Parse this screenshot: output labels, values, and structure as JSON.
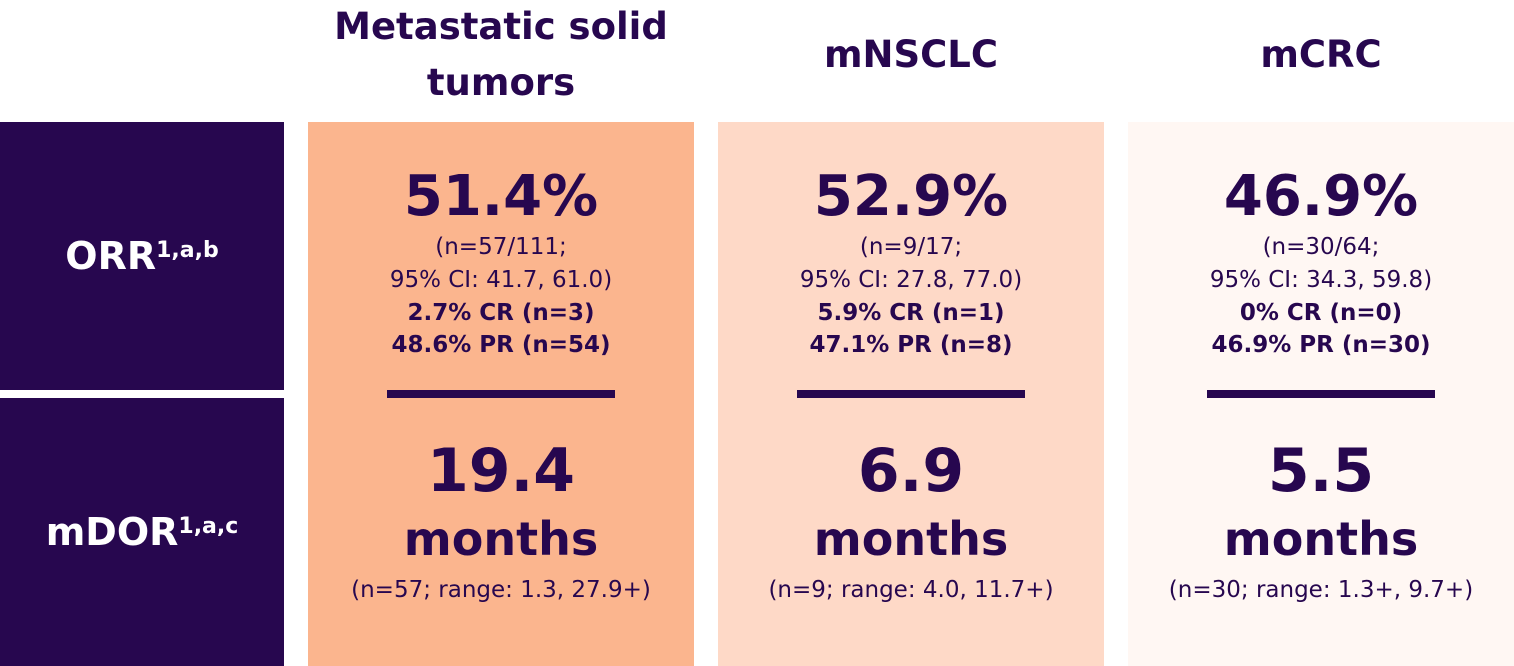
{
  "header": {
    "columns": [
      "Metastatic solid tumors",
      "mNSCLC",
      "mCRC"
    ]
  },
  "rows": [
    {
      "label": "ORR",
      "superscript": "1,a,b"
    },
    {
      "label": "mDOR",
      "superscript": "1,a,c"
    }
  ],
  "cells": [
    {
      "orr": "51.4%",
      "orr_n": "(n=57/111;",
      "orr_ci": "95% CI: 41.7, 61.0)",
      "cr": "2.7% CR (n=3)",
      "pr": "48.6% PR (n=54)",
      "mdor": "19.4",
      "mdor_unit": "months",
      "mdor_detail": "(n=57; range: 1.3, 27.9+)"
    },
    {
      "orr": "52.9%",
      "orr_n": "(n=9/17;",
      "orr_ci": "95% CI: 27.8, 77.0)",
      "cr": "5.9% CR (n=1)",
      "pr": "47.1% PR (n=8)",
      "mdor": "6.9",
      "mdor_unit": "months",
      "mdor_detail": "(n=9; range: 4.0, 11.7+)"
    },
    {
      "orr": "46.9%",
      "orr_n": "(n=30/64;",
      "orr_ci": "95% CI: 34.3, 59.8)",
      "cr": "0% CR (n=0)",
      "pr": "46.9% PR (n=30)",
      "mdor": "5.5",
      "mdor_unit": "months",
      "mdor_detail": "(n=30; range: 1.3+, 9.7+)"
    }
  ]
}
